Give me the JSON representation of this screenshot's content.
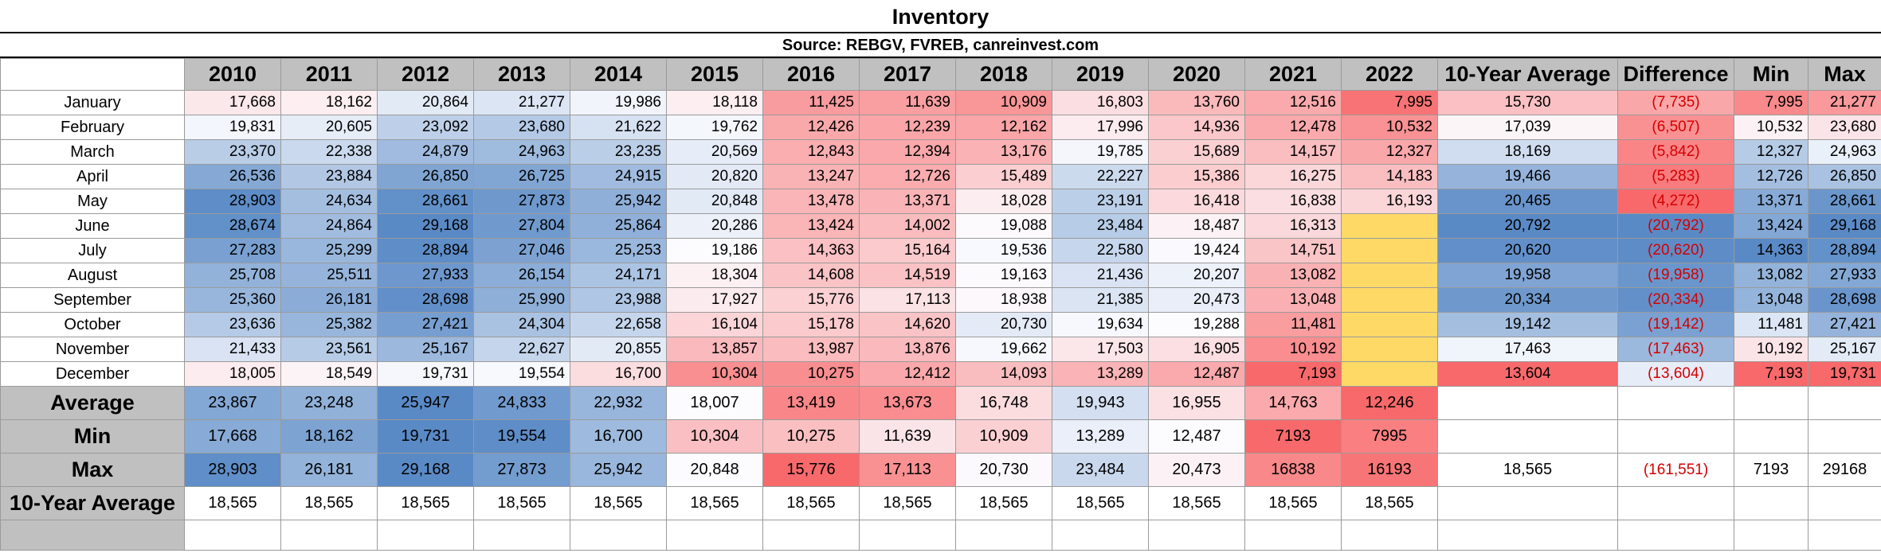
{
  "title": "Inventory",
  "subtitle": "Source: REBGV, FVREB, canreinvest.com",
  "headers": [
    "2010",
    "2011",
    "2012",
    "2013",
    "2014",
    "2015",
    "2016",
    "2017",
    "2018",
    "2019",
    "2020",
    "2021",
    "2022",
    "10-Year Average",
    "Difference",
    "Min",
    "Max"
  ],
  "months": [
    {
      "label": "January",
      "values": [
        "17,668",
        "18,162",
        "20,864",
        "21,277",
        "19,986",
        "18,118",
        "11,425",
        "11,639",
        "10,909",
        "16,803",
        "13,760",
        "12,516",
        "7,995"
      ],
      "avg": "15,730",
      "diff": "(7,735)",
      "min": "7,995",
      "max": "21,277"
    },
    {
      "label": "February",
      "values": [
        "19,831",
        "20,605",
        "23,092",
        "23,680",
        "21,622",
        "19,762",
        "12,426",
        "12,239",
        "12,162",
        "17,996",
        "14,936",
        "12,478",
        "10,532"
      ],
      "avg": "17,039",
      "diff": "(6,507)",
      "min": "10,532",
      "max": "23,680"
    },
    {
      "label": "March",
      "values": [
        "23,370",
        "22,338",
        "24,879",
        "24,963",
        "23,235",
        "20,569",
        "12,843",
        "12,394",
        "13,176",
        "19,785",
        "15,689",
        "14,157",
        "12,327"
      ],
      "avg": "18,169",
      "diff": "(5,842)",
      "min": "12,327",
      "max": "24,963"
    },
    {
      "label": "April",
      "values": [
        "26,536",
        "23,884",
        "26,850",
        "26,725",
        "24,915",
        "20,820",
        "13,247",
        "12,726",
        "15,489",
        "22,227",
        "15,386",
        "16,275",
        "14,183"
      ],
      "avg": "19,466",
      "diff": "(5,283)",
      "min": "12,726",
      "max": "26,850"
    },
    {
      "label": "May",
      "values": [
        "28,903",
        "24,634",
        "28,661",
        "27,873",
        "25,942",
        "20,848",
        "13,478",
        "13,371",
        "18,028",
        "23,191",
        "16,418",
        "16,838",
        "16,193"
      ],
      "avg": "20,465",
      "diff": "(4,272)",
      "min": "13,371",
      "max": "28,661"
    },
    {
      "label": "June",
      "values": [
        "28,674",
        "24,864",
        "29,168",
        "27,804",
        "25,864",
        "20,286",
        "13,424",
        "14,002",
        "19,088",
        "23,484",
        "18,487",
        "16,313",
        ""
      ],
      "avg": "20,792",
      "diff": "(20,792)",
      "min": "13,424",
      "max": "29,168"
    },
    {
      "label": "July",
      "values": [
        "27,283",
        "25,299",
        "28,894",
        "27,046",
        "25,253",
        "19,186",
        "14,363",
        "15,164",
        "19,536",
        "22,580",
        "19,424",
        "14,751",
        ""
      ],
      "avg": "20,620",
      "diff": "(20,620)",
      "min": "14,363",
      "max": "28,894"
    },
    {
      "label": "August",
      "values": [
        "25,708",
        "25,511",
        "27,933",
        "26,154",
        "24,171",
        "18,304",
        "14,608",
        "14,519",
        "19,163",
        "21,436",
        "20,207",
        "13,082",
        ""
      ],
      "avg": "19,958",
      "diff": "(19,958)",
      "min": "13,082",
      "max": "27,933"
    },
    {
      "label": "September",
      "values": [
        "25,360",
        "26,181",
        "28,698",
        "25,990",
        "23,988",
        "17,927",
        "15,776",
        "17,113",
        "18,938",
        "21,385",
        "20,473",
        "13,048",
        ""
      ],
      "avg": "20,334",
      "diff": "(20,334)",
      "min": "13,048",
      "max": "28,698"
    },
    {
      "label": "October",
      "values": [
        "23,636",
        "25,382",
        "27,421",
        "24,304",
        "22,658",
        "16,104",
        "15,178",
        "14,620",
        "20,730",
        "19,634",
        "19,288",
        "11,481",
        ""
      ],
      "avg": "19,142",
      "diff": "(19,142)",
      "min": "11,481",
      "max": "27,421"
    },
    {
      "label": "November",
      "values": [
        "21,433",
        "23,561",
        "25,167",
        "22,627",
        "20,855",
        "13,857",
        "13,987",
        "13,876",
        "19,662",
        "17,503",
        "16,905",
        "10,192",
        ""
      ],
      "avg": "17,463",
      "diff": "(17,463)",
      "min": "10,192",
      "max": "25,167"
    },
    {
      "label": "December",
      "values": [
        "18,005",
        "18,549",
        "19,731",
        "19,554",
        "16,700",
        "10,304",
        "10,275",
        "12,412",
        "14,093",
        "13,289",
        "12,487",
        "7,193",
        ""
      ],
      "avg": "13,604",
      "diff": "(13,604)",
      "min": "7,193",
      "max": "19,731"
    }
  ],
  "summary": [
    {
      "label": "Average",
      "values": [
        "23,867",
        "23,248",
        "25,947",
        "24,833",
        "22,932",
        "18,007",
        "13,419",
        "13,673",
        "16,748",
        "19,943",
        "16,955",
        "14,763",
        "12,246"
      ],
      "avg": "",
      "diff": "",
      "min": "",
      "max": ""
    },
    {
      "label": "Min",
      "values": [
        "17,668",
        "18,162",
        "19,731",
        "19,554",
        "16,700",
        "10,304",
        "10,275",
        "11,639",
        "10,909",
        "13,289",
        "12,487",
        "7193",
        "7995"
      ],
      "avg": "",
      "diff": "",
      "min": "",
      "max": ""
    },
    {
      "label": "Max",
      "values": [
        "28,903",
        "26,181",
        "29,168",
        "27,873",
        "25,942",
        "20,848",
        "15,776",
        "17,113",
        "20,730",
        "23,484",
        "20,473",
        "16838",
        "16193"
      ],
      "avg": "18,565",
      "diff": "(161,551)",
      "min": "7193",
      "max": "29168"
    },
    {
      "label": "10-Year Average",
      "values": [
        "18,565",
        "18,565",
        "18,565",
        "18,565",
        "18,565",
        "18,565",
        "18,565",
        "18,565",
        "18,565",
        "18,565",
        "18,565",
        "18,565",
        "18,565"
      ],
      "avg": "",
      "diff": "",
      "min": "",
      "max": ""
    }
  ],
  "colors": {
    "header_gray": "#c0c0c0",
    "negative_text": "#d40000",
    "missing_yellow": "#fed966",
    "blue_max": "#5a8ac6",
    "red_min": "#f8696b"
  }
}
